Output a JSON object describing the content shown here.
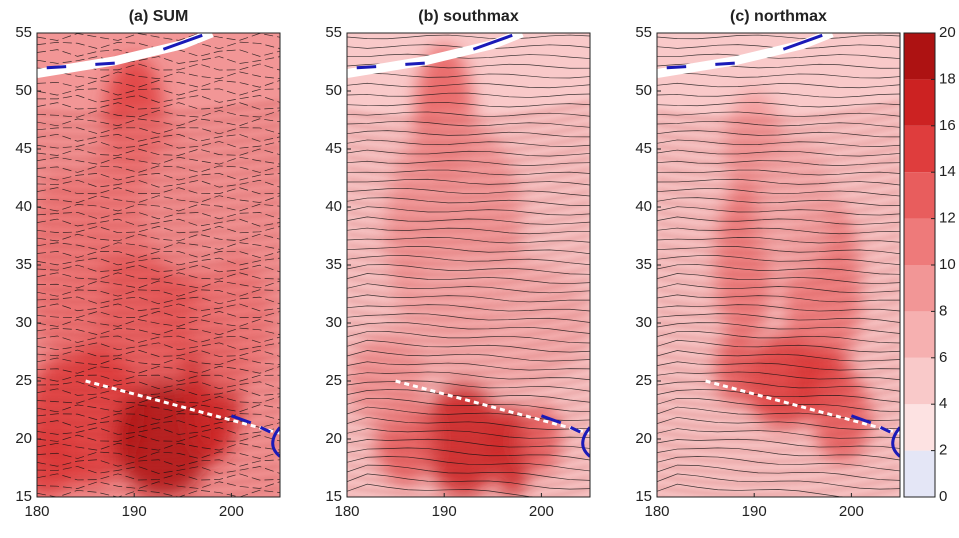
{
  "chart_data": [
    {
      "type": "heatmap",
      "title": "(a) SUM",
      "xlim": [
        180,
        205
      ],
      "ylim": [
        15,
        55
      ],
      "xticks": [
        180,
        190,
        200
      ],
      "yticks": [
        15,
        20,
        25,
        30,
        35,
        40,
        45,
        50,
        55
      ]
    },
    {
      "type": "heatmap",
      "title": "(b) southmax",
      "xlim": [
        180,
        205
      ],
      "ylim": [
        15,
        55
      ],
      "xticks": [
        180,
        190,
        200
      ],
      "yticks": [
        15,
        20,
        25,
        30,
        35,
        40,
        45,
        50,
        55
      ]
    },
    {
      "type": "heatmap",
      "title": "(c) northmax",
      "xlim": [
        180,
        205
      ],
      "ylim": [
        15,
        55
      ],
      "xticks": [
        180,
        190,
        200
      ],
      "yticks": [
        15,
        20,
        25,
        30,
        35,
        40,
        45,
        50,
        55
      ]
    },
    {
      "type": "colorbar",
      "clim": [
        0,
        20
      ],
      "cticks": [
        0,
        2,
        4,
        6,
        8,
        10,
        12,
        14,
        16,
        18,
        20
      ],
      "colors": [
        "#e4e6f6",
        "#fde2e2",
        "#f9c9c9",
        "#f6b0b0",
        "#f29696",
        "#ee7a7a",
        "#e85d5d",
        "#df3d3d",
        "#cc2222",
        "#ad1212",
        "#870606"
      ]
    }
  ]
}
